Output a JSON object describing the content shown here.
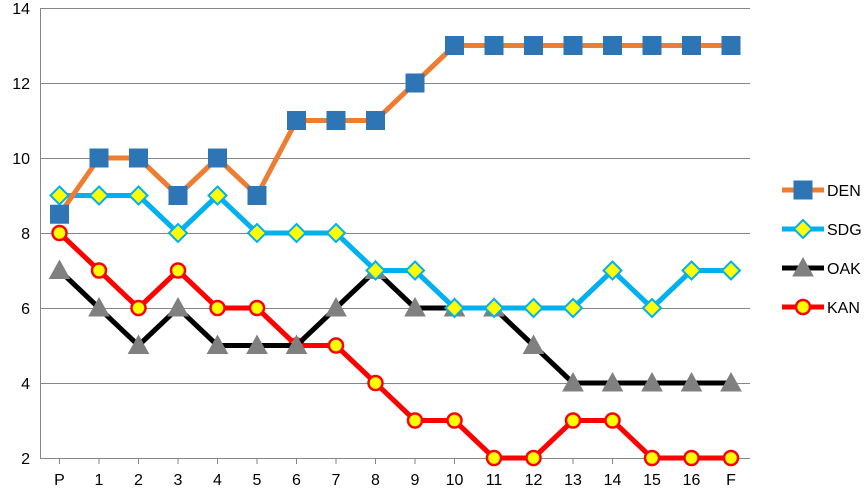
{
  "chart_data": {
    "type": "line",
    "title": "",
    "xlabel": "",
    "ylabel": "",
    "categories": [
      "P",
      "1",
      "2",
      "3",
      "4",
      "5",
      "6",
      "7",
      "8",
      "9",
      "10",
      "11",
      "12",
      "13",
      "14",
      "15",
      "16",
      "F"
    ],
    "ylim": [
      2,
      14
    ],
    "yticks": [
      2,
      4,
      6,
      8,
      10,
      12,
      14
    ],
    "grid": "horizontal",
    "legend_position": "right",
    "series": [
      {
        "name": "DEN",
        "line_color": "#ED7D31",
        "marker": "square",
        "marker_fill": "#2E75B6",
        "marker_stroke": "#2E75B6",
        "values": [
          8.5,
          10,
          10,
          9,
          10,
          9,
          11,
          11,
          11,
          12,
          13,
          13,
          13,
          13,
          13,
          13,
          13,
          13
        ]
      },
      {
        "name": "SDG",
        "line_color": "#00B0F0",
        "marker": "diamond",
        "marker_fill": "#FFFF00",
        "marker_stroke": "#00B0F0",
        "values": [
          9,
          9,
          9,
          8,
          9,
          8,
          8,
          8,
          7,
          7,
          6,
          6,
          6,
          6,
          7,
          6,
          7,
          7
        ]
      },
      {
        "name": "OAK",
        "line_color": "#000000",
        "marker": "triangle",
        "marker_fill": "#808080",
        "marker_stroke": "#808080",
        "values": [
          7,
          6,
          5,
          6,
          5,
          5,
          5,
          6,
          7,
          6,
          6,
          6,
          5,
          4,
          4,
          4,
          4,
          4
        ]
      },
      {
        "name": "KAN",
        "line_color": "#FF0000",
        "marker": "circle",
        "marker_fill": "#FFFF00",
        "marker_stroke": "#FF0000",
        "values": [
          8,
          7,
          6,
          7,
          6,
          6,
          5,
          5,
          4,
          3,
          3,
          2,
          2,
          3,
          3,
          2,
          2,
          2
        ]
      }
    ]
  }
}
